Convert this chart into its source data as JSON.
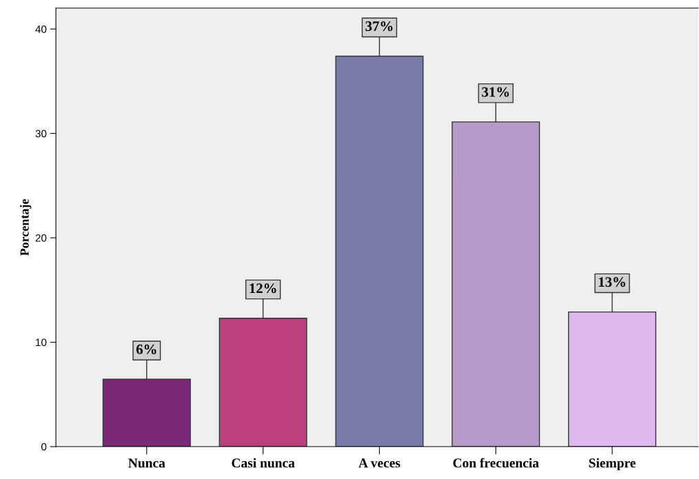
{
  "chart_data": {
    "type": "bar",
    "ylabel": "Porcentaje",
    "categories": [
      "Nunca",
      "Casi nunca",
      "A veces",
      "Con frecuencia",
      "Siempre"
    ],
    "values": [
      6.45,
      12.3,
      37.4,
      31.1,
      12.9
    ],
    "value_labels": [
      "6%",
      "12%",
      "37%",
      "31%",
      "13%"
    ],
    "colors": [
      "#7b2879",
      "#bb407b",
      "#7a7aa8",
      "#b89aca",
      "#dfb8f0"
    ],
    "ylim": [
      0,
      42
    ],
    "yticks": [
      0,
      10,
      20,
      30,
      40
    ],
    "grid": false
  }
}
